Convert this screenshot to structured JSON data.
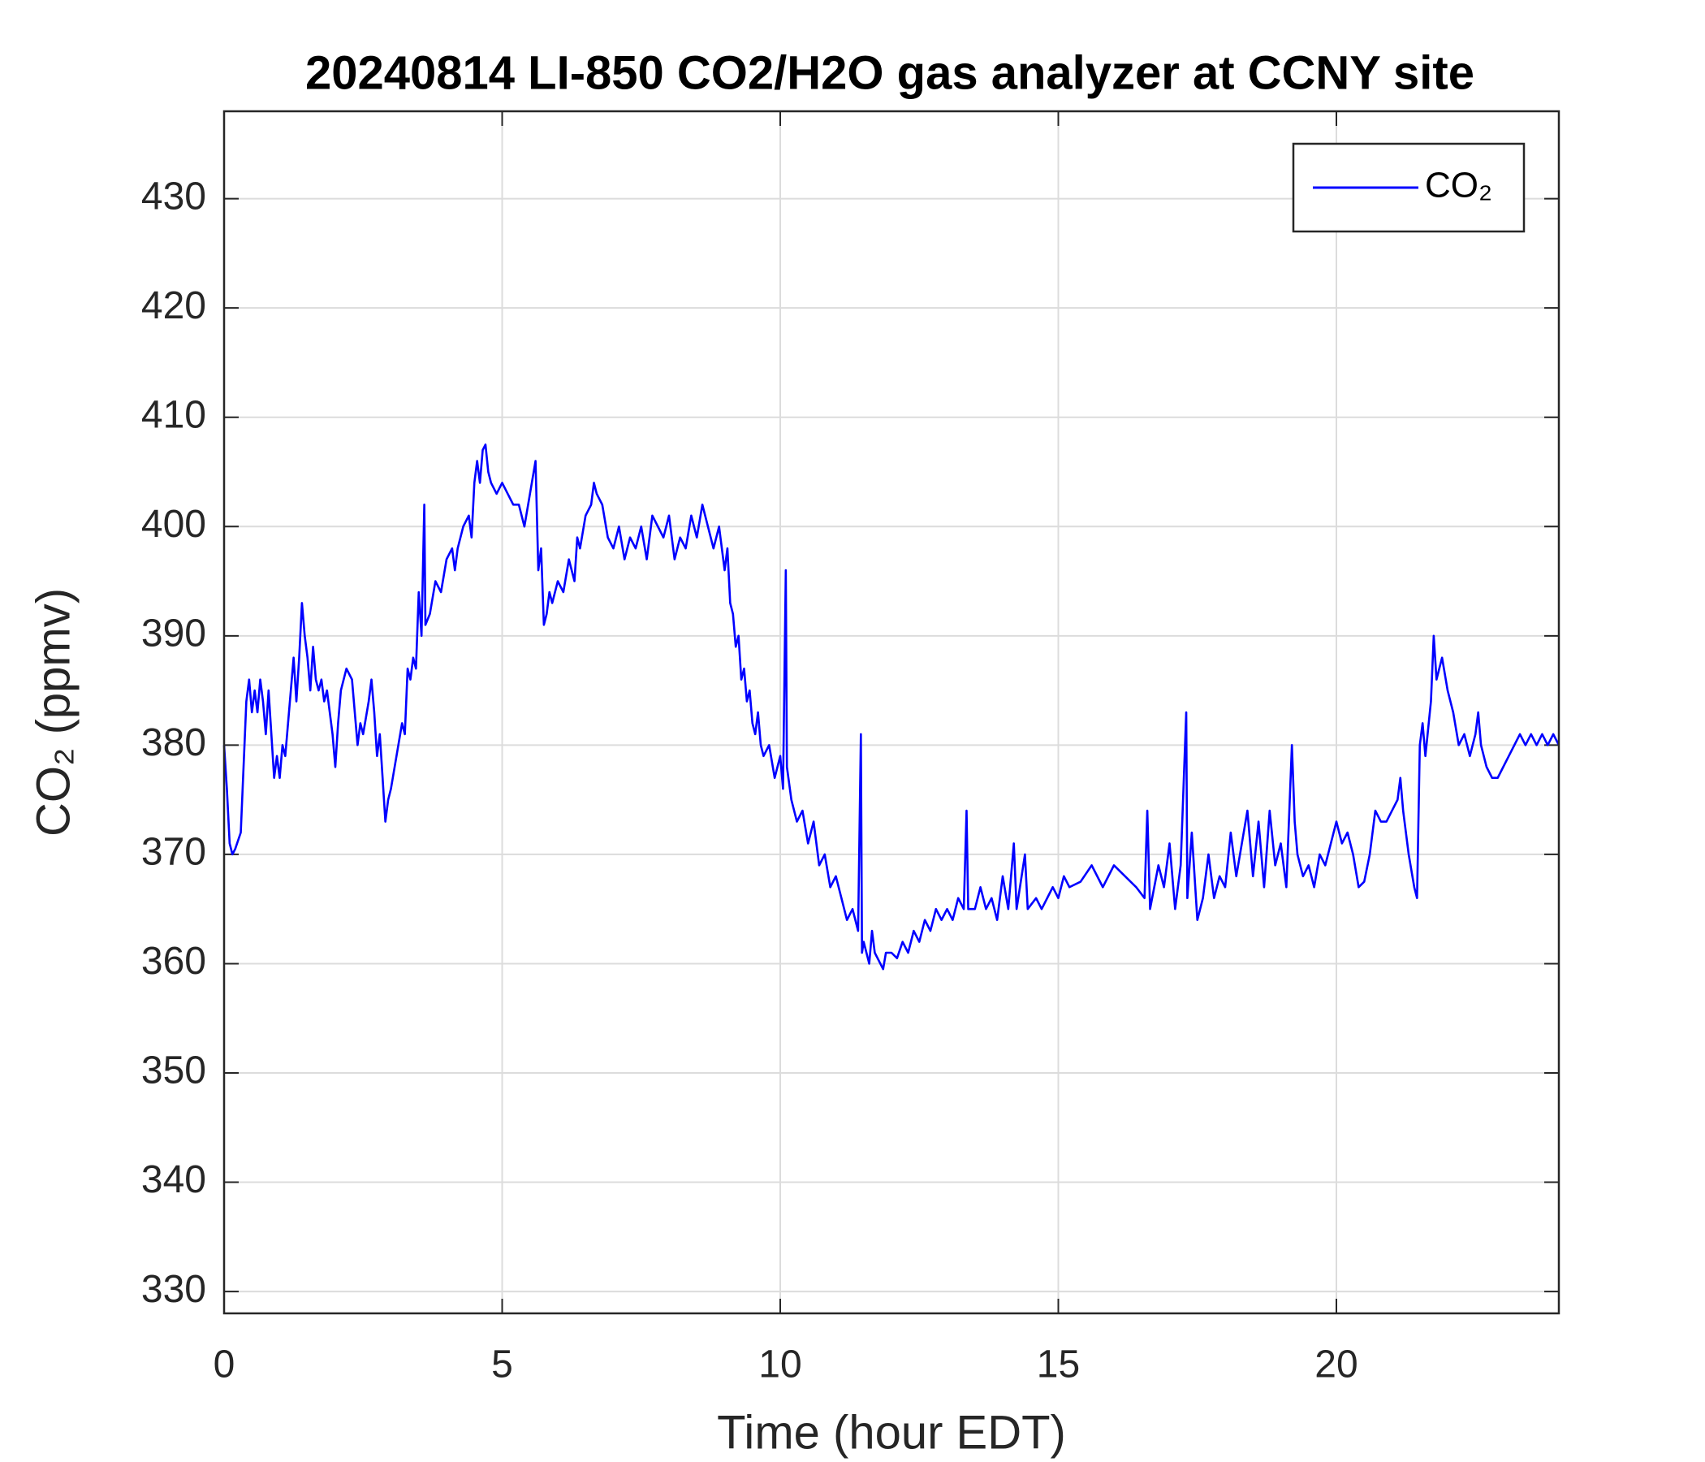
{
  "chart_data": {
    "type": "line",
    "title": "20240814 LI-850 CO2/H2O gas analyzer at CCNY site",
    "x_label": "Time (hour EDT)",
    "y_label": "CO₂ (ppmv)",
    "xlim": [
      0,
      24
    ],
    "xticks": [
      0,
      5,
      10,
      15,
      20
    ],
    "ylim": [
      328,
      438
    ],
    "yticks": [
      330,
      340,
      350,
      360,
      370,
      380,
      390,
      400,
      410,
      420,
      430
    ],
    "grid": true,
    "legend": "upper right",
    "x": [
      0,
      0.05,
      0.1,
      0.15,
      0.2,
      0.3,
      0.35,
      0.4,
      0.45,
      0.5,
      0.55,
      0.6,
      0.65,
      0.7,
      0.75,
      0.8,
      0.85,
      0.9,
      0.95,
      1.0,
      1.05,
      1.1,
      1.15,
      1.2,
      1.25,
      1.3,
      1.35,
      1.4,
      1.45,
      1.5,
      1.55,
      1.6,
      1.65,
      1.7,
      1.75,
      1.8,
      1.85,
      1.9,
      1.95,
      2.0,
      2.05,
      2.1,
      2.2,
      2.3,
      2.4,
      2.45,
      2.5,
      2.6,
      2.65,
      2.7,
      2.75,
      2.8,
      2.85,
      2.9,
      2.95,
      3.0,
      3.1,
      3.2,
      3.25,
      3.3,
      3.35,
      3.4,
      3.45,
      3.5,
      3.55,
      3.6,
      3.62,
      3.7,
      3.8,
      3.9,
      4.0,
      4.1,
      4.15,
      4.2,
      4.3,
      4.4,
      4.45,
      4.5,
      4.55,
      4.6,
      4.65,
      4.7,
      4.75,
      4.8,
      4.9,
      5.0,
      5.1,
      5.2,
      5.3,
      5.4,
      5.5,
      5.6,
      5.65,
      5.7,
      5.75,
      5.8,
      5.85,
      5.9,
      6.0,
      6.1,
      6.2,
      6.3,
      6.35,
      6.4,
      6.5,
      6.6,
      6.65,
      6.7,
      6.8,
      6.9,
      7.0,
      7.1,
      7.2,
      7.3,
      7.4,
      7.5,
      7.6,
      7.7,
      7.8,
      7.9,
      8.0,
      8.1,
      8.2,
      8.3,
      8.4,
      8.5,
      8.6,
      8.7,
      8.8,
      8.9,
      9.0,
      9.05,
      9.1,
      9.15,
      9.2,
      9.25,
      9.3,
      9.35,
      9.4,
      9.45,
      9.5,
      9.55,
      9.6,
      9.65,
      9.7,
      9.8,
      9.9,
      10.0,
      10.05,
      10.1,
      10.12,
      10.2,
      10.3,
      10.4,
      10.5,
      10.6,
      10.7,
      10.8,
      10.9,
      11.0,
      11.1,
      11.2,
      11.3,
      11.4,
      11.45,
      11.47,
      11.5,
      11.6,
      11.65,
      11.7,
      11.8,
      11.85,
      11.9,
      12.0,
      12.1,
      12.2,
      12.3,
      12.4,
      12.5,
      12.6,
      12.7,
      12.8,
      12.9,
      13.0,
      13.1,
      13.2,
      13.3,
      13.35,
      13.38,
      13.5,
      13.6,
      13.7,
      13.8,
      13.9,
      14.0,
      14.1,
      14.2,
      14.25,
      14.4,
      14.45,
      14.6,
      14.7,
      14.8,
      14.9,
      15.0,
      15.1,
      15.2,
      15.4,
      15.6,
      15.8,
      16.0,
      16.2,
      16.4,
      16.55,
      16.6,
      16.65,
      16.8,
      16.9,
      17.0,
      17.1,
      17.2,
      17.3,
      17.32,
      17.4,
      17.5,
      17.6,
      17.7,
      17.8,
      17.9,
      18.0,
      18.1,
      18.2,
      18.3,
      18.4,
      18.5,
      18.6,
      18.7,
      18.8,
      18.9,
      19.0,
      19.1,
      19.2,
      19.25,
      19.3,
      19.4,
      19.5,
      19.6,
      19.7,
      19.8,
      19.9,
      20.0,
      20.1,
      20.2,
      20.3,
      20.4,
      20.5,
      20.6,
      20.7,
      20.8,
      20.9,
      21.0,
      21.1,
      21.15,
      21.2,
      21.3,
      21.4,
      21.45,
      21.5,
      21.55,
      21.6,
      21.7,
      21.75,
      21.8,
      21.9,
      22.0,
      22.1,
      22.2,
      22.3,
      22.4,
      22.5,
      22.55,
      22.6,
      22.7,
      22.8,
      22.9,
      23.0,
      23.1,
      23.2,
      23.3,
      23.4,
      23.5,
      23.6,
      23.7,
      23.8,
      23.9,
      24.0
    ],
    "series": [
      {
        "name": "CO₂",
        "color": "#0000ff",
        "values": [
          380,
          376,
          371,
          370,
          370.5,
          372,
          378,
          384,
          386,
          383,
          385,
          383,
          386,
          384,
          381,
          385,
          381,
          377,
          379,
          377,
          380,
          379,
          382,
          385,
          388,
          384,
          388,
          393,
          390,
          388,
          385,
          389,
          386,
          385,
          386,
          384,
          385,
          383,
          381,
          378,
          382,
          385,
          387,
          386,
          380,
          382,
          381,
          384,
          386,
          383,
          379,
          381,
          377,
          373,
          375,
          376,
          379,
          382,
          381,
          387,
          386,
          388,
          387,
          394,
          390,
          402,
          391,
          392,
          395,
          394,
          397,
          398,
          396,
          398,
          400,
          401,
          399,
          404,
          406,
          404,
          407,
          407.5,
          405,
          404,
          403,
          404,
          403,
          402,
          402,
          400,
          403,
          406,
          396,
          398,
          391,
          392,
          394,
          393,
          395,
          394,
          397,
          395,
          399,
          398,
          401,
          402,
          404,
          403,
          402,
          399,
          398,
          400,
          397,
          399,
          398,
          400,
          397,
          401,
          400,
          399,
          401,
          397,
          399,
          398,
          401,
          399,
          402,
          400,
          398,
          400,
          396,
          398,
          393,
          392,
          389,
          390,
          386,
          387,
          384,
          385,
          382,
          381,
          383,
          380,
          379,
          380,
          377,
          379,
          376,
          396,
          378,
          375,
          373,
          374,
          371,
          373,
          369,
          370,
          367,
          368,
          366,
          364,
          365,
          363,
          381,
          361,
          362,
          360,
          363,
          361,
          360,
          359.5,
          361,
          361,
          360.5,
          362,
          361,
          363,
          362,
          364,
          363,
          365,
          364,
          365,
          364,
          366,
          365,
          374,
          365,
          365,
          367,
          365,
          366,
          364,
          368,
          365,
          371,
          365,
          370,
          365,
          366,
          365,
          366,
          367,
          366,
          368,
          367,
          367.5,
          369,
          367,
          369,
          368,
          367,
          366,
          374,
          365,
          369,
          367,
          371,
          365,
          369,
          383,
          366,
          372,
          364,
          366,
          370,
          366,
          368,
          367,
          372,
          368,
          371,
          374,
          368,
          373,
          367,
          374,
          369,
          371,
          367,
          380,
          373,
          370,
          368,
          369,
          367,
          370,
          369,
          371,
          373,
          371,
          372,
          370,
          367,
          367.5,
          370,
          374,
          373,
          373,
          374,
          375,
          377,
          374,
          370,
          367,
          366,
          380,
          382,
          379,
          384,
          390,
          386,
          388,
          385,
          383,
          380,
          381,
          379,
          381,
          383,
          380,
          378,
          377,
          377,
          378,
          379,
          380,
          381,
          380,
          381,
          380,
          381,
          380,
          381,
          380
        ]
      }
    ]
  }
}
